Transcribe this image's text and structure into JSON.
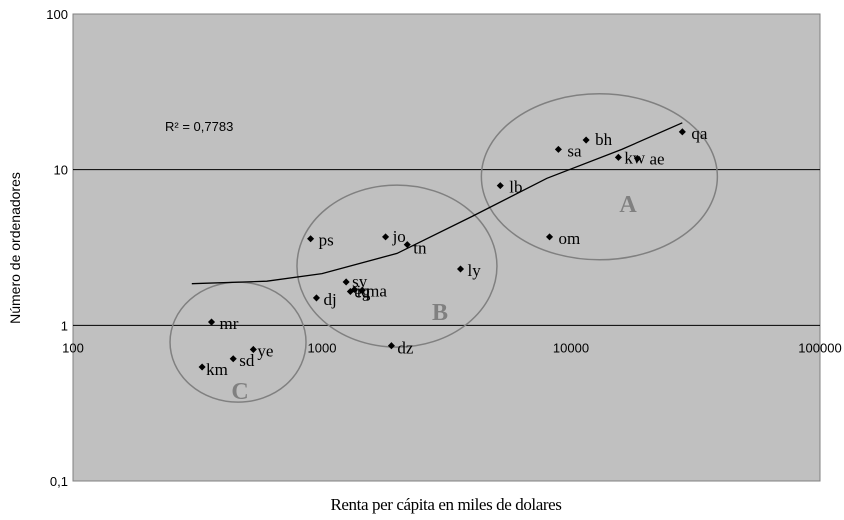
{
  "chart_data": {
    "type": "scatter",
    "xlabel": "Renta per cápita en miles de dolares",
    "ylabel": "Número de ordenadores",
    "x_scale": "log",
    "y_scale": "log",
    "xlim": [
      100,
      100000
    ],
    "ylim": [
      0.1,
      100
    ],
    "x_ticks": [
      "100",
      "1000",
      "10000",
      "100000"
    ],
    "y_ticks": [
      "0,1",
      "1",
      "10",
      "100"
    ],
    "grid": "horizontal major lines",
    "background": "#c0c0c0",
    "points": [
      {
        "label": "qa",
        "x": 28000,
        "y": 17.5
      },
      {
        "label": "bh",
        "x": 11500,
        "y": 15.5
      },
      {
        "label": "sa",
        "x": 8900,
        "y": 13.5
      },
      {
        "label": "kw",
        "x": 15500,
        "y": 12
      },
      {
        "label": "ae",
        "x": 18500,
        "y": 11.8
      },
      {
        "label": "lb",
        "x": 5200,
        "y": 7.9
      },
      {
        "label": "om",
        "x": 8200,
        "y": 3.7
      },
      {
        "label": "jo",
        "x": 1800,
        "y": 3.7
      },
      {
        "label": "tn",
        "x": 2200,
        "y": 3.3
      },
      {
        "label": "ps",
        "x": 900,
        "y": 3.6
      },
      {
        "label": "ly",
        "x": 3600,
        "y": 2.3
      },
      {
        "label": "sy",
        "x": 1250,
        "y": 1.9
      },
      {
        "label": "iq",
        "x": 1350,
        "y": 1.7
      },
      {
        "label": "eg",
        "x": 1300,
        "y": 1.65
      },
      {
        "label": "ma",
        "x": 1450,
        "y": 1.68
      },
      {
        "label": "dj",
        "x": 950,
        "y": 1.5
      },
      {
        "label": "dz",
        "x": 1900,
        "y": 0.74
      },
      {
        "label": "mr",
        "x": 360,
        "y": 1.05
      },
      {
        "label": "ye",
        "x": 530,
        "y": 0.7
      },
      {
        "label": "sd",
        "x": 440,
        "y": 0.61
      },
      {
        "label": "km",
        "x": 330,
        "y": 0.54
      }
    ],
    "trendline": {
      "type": "polynomial",
      "r2_text": "R² = 0,7783",
      "points": [
        [
          300,
          1.85
        ],
        [
          600,
          1.92
        ],
        [
          1000,
          2.15
        ],
        [
          2000,
          2.9
        ],
        [
          4000,
          5.0
        ],
        [
          8000,
          8.8
        ],
        [
          16000,
          13.5
        ],
        [
          28000,
          20
        ]
      ]
    },
    "groups": [
      {
        "label": "A",
        "cx": 13000,
        "cy": 9
      },
      {
        "label": "B",
        "cx": 2000,
        "cy": 2.4
      },
      {
        "label": "C",
        "cx": 460,
        "cy": 0.78
      }
    ]
  }
}
